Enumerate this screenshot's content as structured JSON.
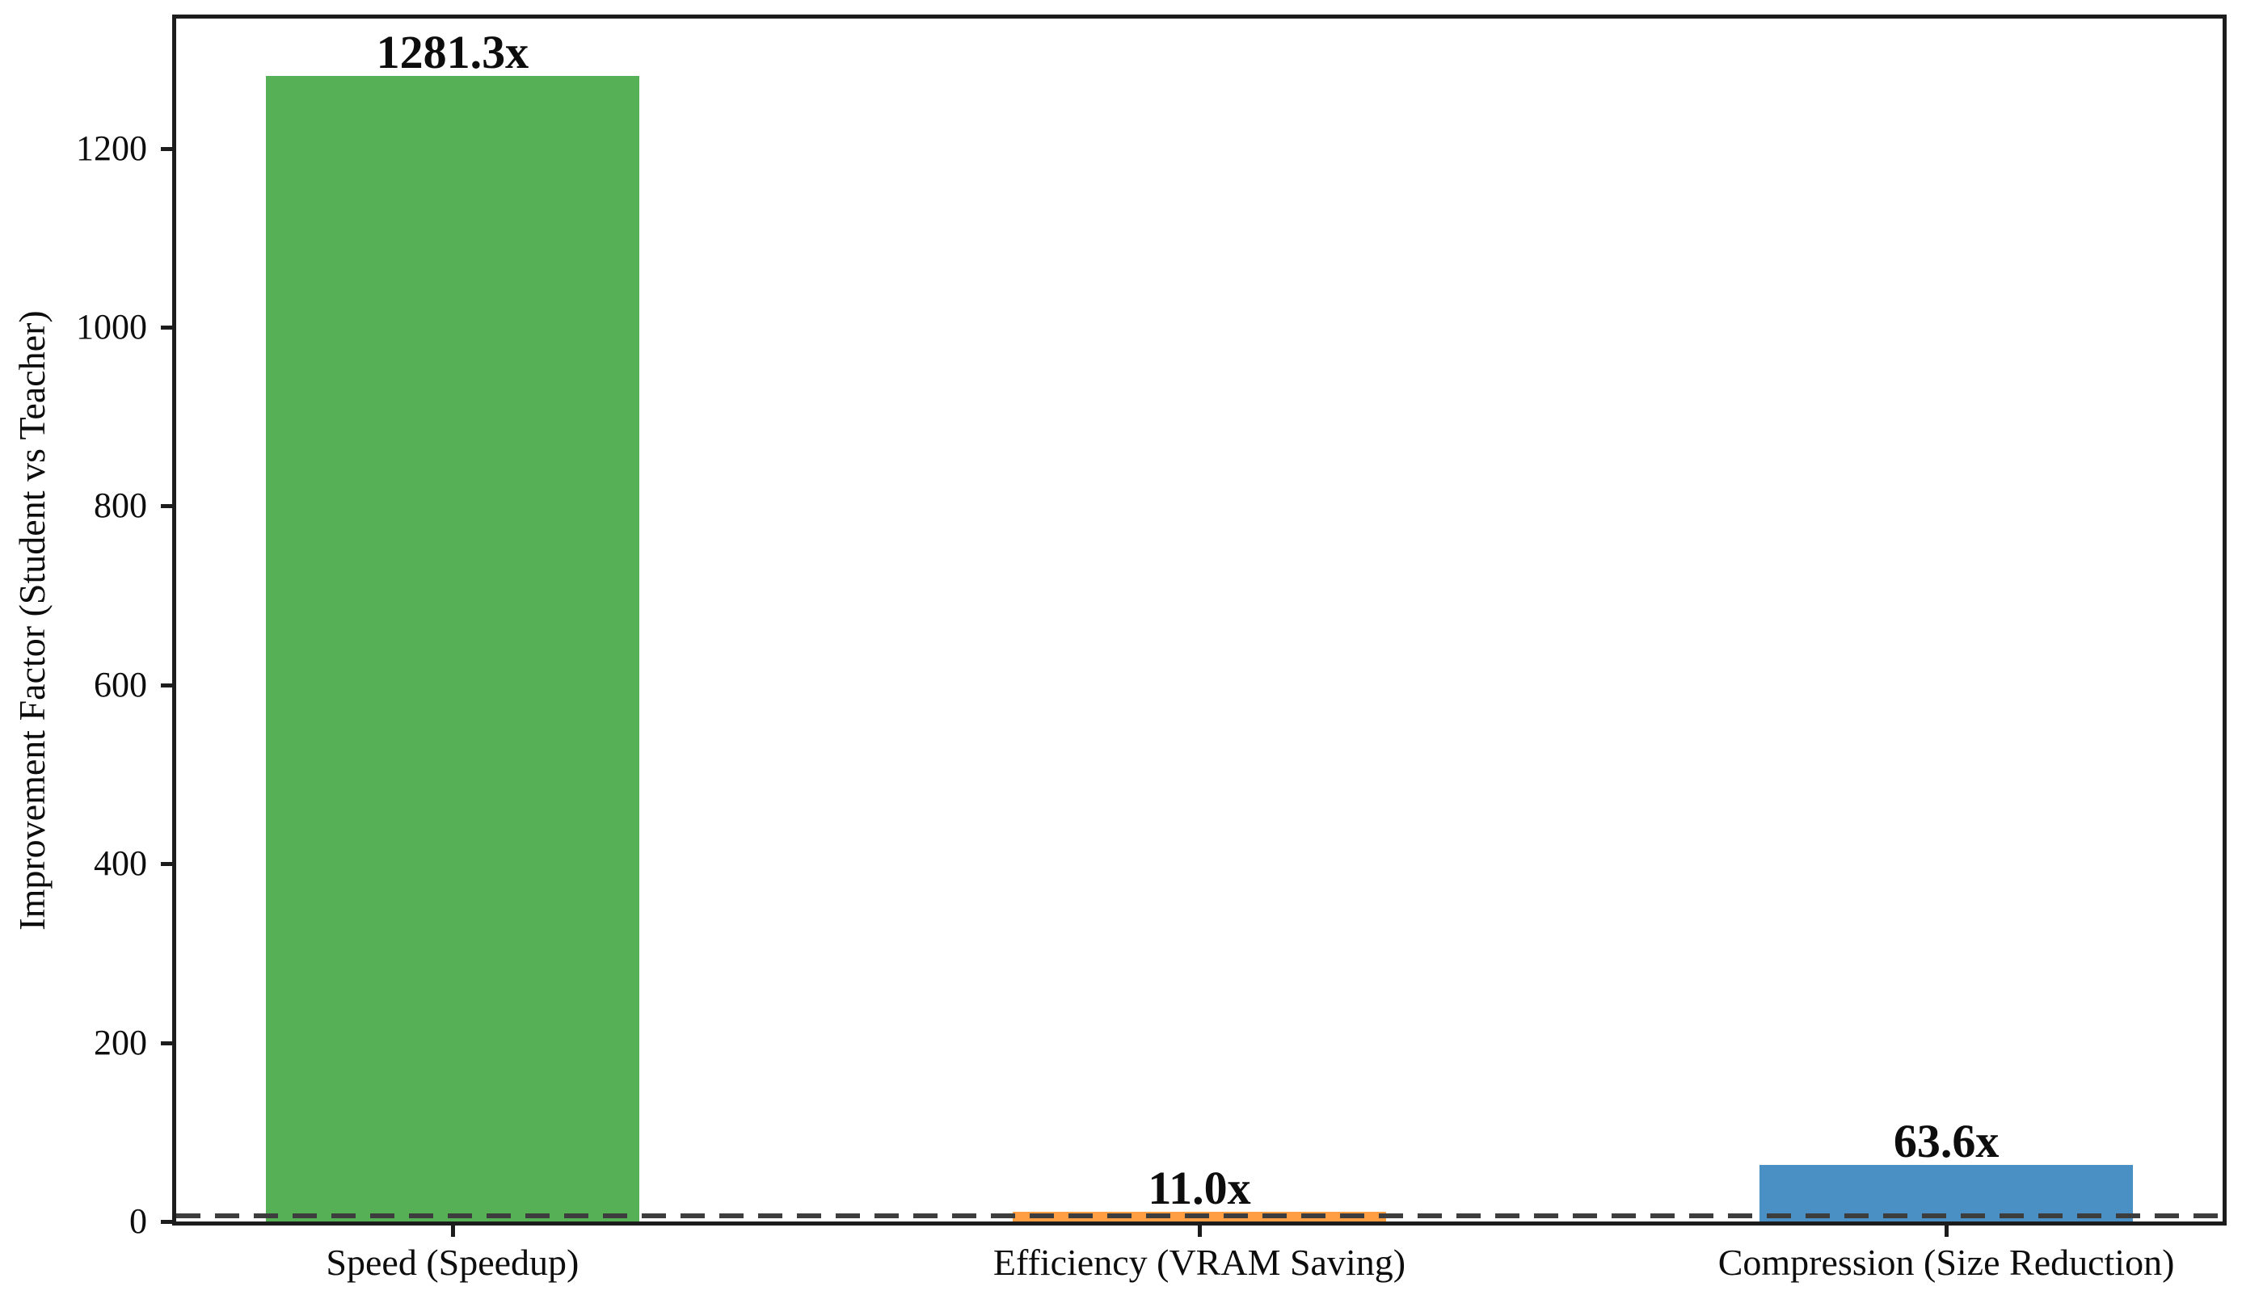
{
  "chart_data": {
    "type": "bar",
    "title": "",
    "ylabel": "Improvement Factor (Student vs Teacher)",
    "xlabel": "",
    "categories": [
      "Speed (Speedup)",
      "Efficiency (VRAM Saving)",
      "Compression (Size Reduction)"
    ],
    "values": [
      1281.3,
      11.0,
      63.6
    ],
    "bar_labels": [
      "1281.3x",
      "11.0x",
      "63.6x"
    ],
    "bar_colors": [
      "#55b056",
      "#ff9e42",
      "#4a90c4"
    ],
    "yticks": [
      0,
      200,
      400,
      600,
      800,
      1000,
      1200
    ],
    "ylim": [
      0,
      1345
    ],
    "grid": false,
    "legend_position": "none",
    "frame": true,
    "reference_line": {
      "y": 1,
      "style": "dashed",
      "color": "#3d3d3d"
    },
    "axis_color": "#1c1c1c",
    "text_color": "#0d0d0d"
  }
}
